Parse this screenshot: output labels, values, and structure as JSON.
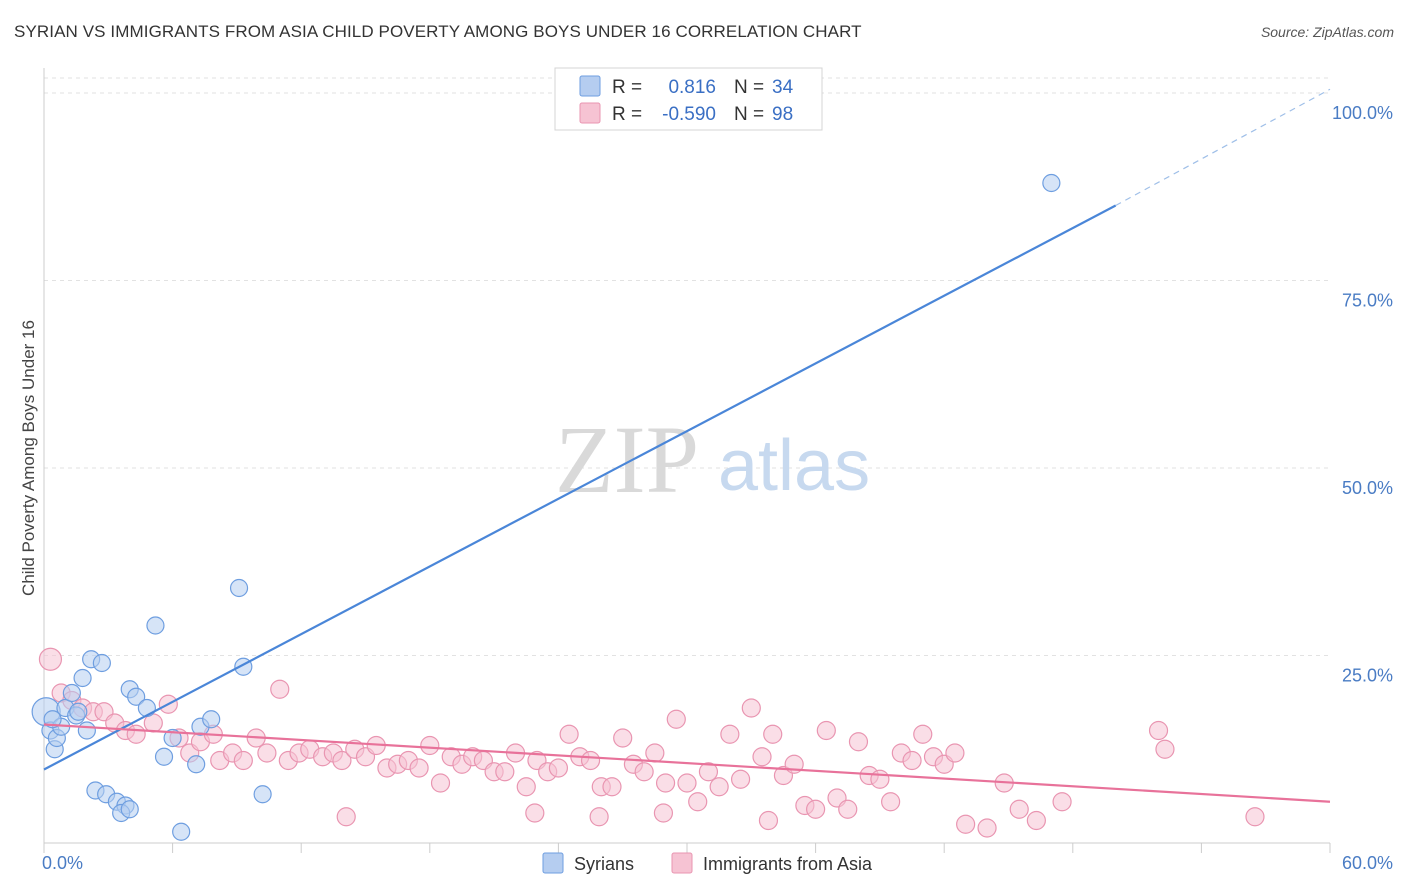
{
  "title": "SYRIAN VS IMMIGRANTS FROM ASIA CHILD POVERTY AMONG BOYS UNDER 16 CORRELATION CHART",
  "source": "Source: ZipAtlas.com",
  "watermark": {
    "zip": "ZIP",
    "atlas": "atlas"
  },
  "colors": {
    "syrians": "#4a86d8",
    "asia": "#e8729a",
    "syrians_fill": "#b5cdf0",
    "asia_fill": "#f6c3d3",
    "tick": "#4a7cc4"
  },
  "chart_data": {
    "type": "scatter",
    "title": "SYRIAN VS IMMIGRANTS FROM ASIA CHILD POVERTY AMONG BOYS UNDER 16 CORRELATION CHART",
    "xlabel": "",
    "ylabel": "Child Poverty Among Boys Under 16",
    "xlim": [
      0,
      60
    ],
    "ylim": [
      0,
      102
    ],
    "x_tick_labels": [
      "0.0%",
      "60.0%"
    ],
    "y_ticks": [
      25,
      50,
      75,
      100
    ],
    "y_tick_labels": [
      "25.0%",
      "50.0%",
      "75.0%",
      "100.0%"
    ],
    "grid": true,
    "legend": {
      "placement": "top-center",
      "entries": [
        {
          "r_label": "R =",
          "r_value": "0.816",
          "n_label": "N =",
          "n_value": "34"
        },
        {
          "r_label": "R =",
          "r_value": "-0.590",
          "n_label": "N =",
          "n_value": "98"
        }
      ]
    },
    "bottom_legend": [
      "Syrians",
      "Immigrants from Asia"
    ],
    "series": [
      {
        "name": "Syrians",
        "trend": {
          "x0": 0,
          "y0": 9.8,
          "x1": 50,
          "y1": 85.0,
          "dash_x1": 60,
          "dash_y1": 100.5
        },
        "points": [
          [
            0.1,
            17.5
          ],
          [
            0.3,
            15.0
          ],
          [
            0.5,
            12.5
          ],
          [
            0.6,
            14.0
          ],
          [
            0.8,
            15.5
          ],
          [
            1.0,
            18.0
          ],
          [
            1.3,
            20.0
          ],
          [
            1.5,
            17.0
          ],
          [
            1.8,
            22.0
          ],
          [
            2.2,
            24.5
          ],
          [
            2.7,
            24.0
          ],
          [
            2.0,
            15.0
          ],
          [
            4.0,
            20.5
          ],
          [
            4.3,
            19.5
          ],
          [
            4.8,
            18.0
          ],
          [
            5.2,
            29.0
          ],
          [
            6.0,
            14.0
          ],
          [
            5.6,
            11.5
          ],
          [
            7.3,
            15.5
          ],
          [
            7.8,
            16.5
          ],
          [
            9.1,
            34.0
          ],
          [
            9.3,
            23.5
          ],
          [
            7.1,
            10.5
          ],
          [
            2.4,
            7.0
          ],
          [
            2.9,
            6.5
          ],
          [
            3.4,
            5.5
          ],
          [
            3.8,
            5.0
          ],
          [
            3.6,
            4.0
          ],
          [
            4.0,
            4.5
          ],
          [
            6.4,
            1.5
          ],
          [
            10.2,
            6.5
          ],
          [
            1.6,
            17.5
          ],
          [
            0.4,
            16.5
          ],
          [
            47.0,
            88.0
          ]
        ]
      },
      {
        "name": "Immigrants from Asia",
        "trend": {
          "x0": 0,
          "y0": 15.8,
          "x1": 60,
          "y1": 5.5
        },
        "points": [
          [
            0.3,
            24.5
          ],
          [
            0.8,
            20.0
          ],
          [
            1.3,
            19.0
          ],
          [
            1.8,
            18.0
          ],
          [
            2.3,
            17.5
          ],
          [
            2.8,
            17.5
          ],
          [
            3.3,
            16.0
          ],
          [
            3.8,
            15.0
          ],
          [
            4.3,
            14.5
          ],
          [
            5.1,
            16.0
          ],
          [
            5.8,
            18.5
          ],
          [
            6.3,
            14.0
          ],
          [
            6.8,
            12.0
          ],
          [
            7.3,
            13.5
          ],
          [
            7.9,
            14.5
          ],
          [
            8.2,
            11.0
          ],
          [
            8.8,
            12.0
          ],
          [
            9.3,
            11.0
          ],
          [
            9.9,
            14.0
          ],
          [
            10.4,
            12.0
          ],
          [
            11.0,
            20.5
          ],
          [
            11.4,
            11.0
          ],
          [
            11.9,
            12.0
          ],
          [
            12.4,
            12.5
          ],
          [
            13.0,
            11.5
          ],
          [
            13.5,
            12.0
          ],
          [
            13.9,
            11.0
          ],
          [
            14.5,
            12.5
          ],
          [
            15.0,
            11.5
          ],
          [
            15.5,
            13.0
          ],
          [
            16.0,
            10.0
          ],
          [
            16.5,
            10.5
          ],
          [
            17.0,
            11.0
          ],
          [
            17.5,
            10.0
          ],
          [
            18.0,
            13.0
          ],
          [
            18.5,
            8.0
          ],
          [
            19.0,
            11.5
          ],
          [
            19.5,
            10.5
          ],
          [
            20.0,
            11.5
          ],
          [
            20.5,
            11.0
          ],
          [
            21.0,
            9.5
          ],
          [
            21.5,
            9.5
          ],
          [
            22.0,
            12.0
          ],
          [
            22.5,
            7.5
          ],
          [
            23.0,
            11.0
          ],
          [
            23.5,
            9.5
          ],
          [
            24.0,
            10.0
          ],
          [
            24.5,
            14.5
          ],
          [
            25.0,
            11.5
          ],
          [
            25.5,
            11.0
          ],
          [
            26.0,
            7.5
          ],
          [
            26.5,
            7.5
          ],
          [
            27.0,
            14.0
          ],
          [
            27.5,
            10.5
          ],
          [
            28.0,
            9.5
          ],
          [
            28.5,
            12.0
          ],
          [
            29.0,
            8.0
          ],
          [
            29.5,
            16.5
          ],
          [
            30.0,
            8.0
          ],
          [
            30.5,
            5.5
          ],
          [
            31.0,
            9.5
          ],
          [
            31.5,
            7.5
          ],
          [
            32.0,
            14.5
          ],
          [
            32.5,
            8.5
          ],
          [
            33.0,
            18.0
          ],
          [
            33.5,
            11.5
          ],
          [
            34.0,
            14.5
          ],
          [
            34.5,
            9.0
          ],
          [
            35.0,
            10.5
          ],
          [
            35.5,
            5.0
          ],
          [
            36.0,
            4.5
          ],
          [
            36.5,
            15.0
          ],
          [
            37.0,
            6.0
          ],
          [
            37.5,
            4.5
          ],
          [
            38.0,
            13.5
          ],
          [
            38.5,
            9.0
          ],
          [
            39.0,
            8.5
          ],
          [
            39.5,
            5.5
          ],
          [
            40.0,
            12.0
          ],
          [
            40.5,
            11.0
          ],
          [
            41.0,
            14.5
          ],
          [
            41.5,
            11.5
          ],
          [
            42.0,
            10.5
          ],
          [
            42.5,
            12.0
          ],
          [
            43.0,
            2.5
          ],
          [
            44.0,
            2.0
          ],
          [
            44.8,
            8.0
          ],
          [
            45.5,
            4.5
          ],
          [
            46.3,
            3.0
          ],
          [
            47.5,
            5.5
          ],
          [
            52.0,
            15.0
          ],
          [
            52.3,
            12.5
          ],
          [
            56.5,
            3.5
          ],
          [
            14.1,
            3.5
          ],
          [
            22.9,
            4.0
          ],
          [
            25.9,
            3.5
          ],
          [
            28.9,
            4.0
          ],
          [
            33.8,
            3.0
          ]
        ]
      }
    ]
  }
}
